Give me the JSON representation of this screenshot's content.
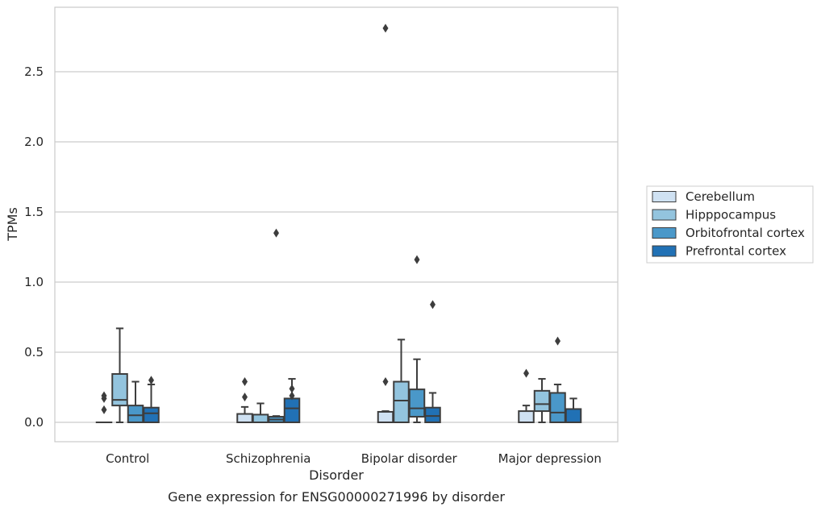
{
  "chart_data": {
    "type": "box",
    "title": "Gene expression for ENSG00000271996 by disorder",
    "xlabel": "Disorder",
    "ylabel": "TPMs",
    "ylim": [
      -0.14,
      2.97
    ],
    "yticks": [
      "0.0",
      "0.5",
      "1.0",
      "1.5",
      "2.0",
      "2.5"
    ],
    "grid": "horizontal",
    "legend_position": "right-center",
    "categories": [
      "Control",
      "Schizophrenia",
      "Bipolar disorder",
      "Major depression"
    ],
    "series": [
      {
        "name": "Cerebellum",
        "color": "#cfe1f2",
        "boxes": [
          {
            "whislo": 0.0,
            "q1": 0.0,
            "med": 0.0,
            "q3": 0.0,
            "whishi": 0.0,
            "fliers": [
              0.09,
              0.17,
              0.19
            ]
          },
          {
            "whislo": 0.0,
            "q1": 0.0,
            "med": 0.0,
            "q3": 0.06,
            "whishi": 0.11,
            "fliers": [
              0.18,
              0.29
            ]
          },
          {
            "whislo": 0.0,
            "q1": 0.0,
            "med": 0.0,
            "q3": 0.075,
            "whishi": 0.08,
            "fliers": [
              0.29,
              2.81
            ]
          },
          {
            "whislo": 0.0,
            "q1": 0.0,
            "med": 0.0,
            "q3": 0.08,
            "whishi": 0.12,
            "fliers": [
              0.35
            ]
          }
        ]
      },
      {
        "name": "Hipppocampus",
        "color": "#93c4de",
        "boxes": [
          {
            "whislo": 0.0,
            "q1": 0.12,
            "med": 0.16,
            "q3": 0.345,
            "whishi": 0.67,
            "fliers": []
          },
          {
            "whislo": 0.0,
            "q1": 0.0,
            "med": 0.0,
            "q3": 0.055,
            "whishi": 0.135,
            "fliers": []
          },
          {
            "whislo": 0.0,
            "q1": 0.0,
            "med": 0.155,
            "q3": 0.29,
            "whishi": 0.59,
            "fliers": []
          },
          {
            "whislo": 0.0,
            "q1": 0.08,
            "med": 0.13,
            "q3": 0.225,
            "whishi": 0.31,
            "fliers": []
          }
        ]
      },
      {
        "name": "Orbitofrontal cortex",
        "color": "#4a98c9",
        "boxes": [
          {
            "whislo": 0.0,
            "q1": 0.0,
            "med": 0.05,
            "q3": 0.12,
            "whishi": 0.29,
            "fliers": []
          },
          {
            "whislo": 0.0,
            "q1": 0.0,
            "med": 0.02,
            "q3": 0.04,
            "whishi": 0.045,
            "fliers": [
              1.35
            ]
          },
          {
            "whislo": 0.0,
            "q1": 0.04,
            "med": 0.1,
            "q3": 0.235,
            "whishi": 0.45,
            "fliers": [
              1.16
            ]
          },
          {
            "whislo": 0.0,
            "q1": 0.0,
            "med": 0.07,
            "q3": 0.21,
            "whishi": 0.27,
            "fliers": [
              0.58
            ]
          }
        ]
      },
      {
        "name": "Prefrontal cortex",
        "color": "#2171b5",
        "boxes": [
          {
            "whislo": 0.0,
            "q1": 0.0,
            "med": 0.065,
            "q3": 0.105,
            "whishi": 0.27,
            "fliers": [
              0.3
            ]
          },
          {
            "whislo": 0.0,
            "q1": 0.0,
            "med": 0.1,
            "q3": 0.17,
            "whishi": 0.31,
            "fliers": [
              0.19,
              0.24
            ]
          },
          {
            "whislo": 0.0,
            "q1": 0.0,
            "med": 0.045,
            "q3": 0.105,
            "whishi": 0.21,
            "fliers": [
              0.84
            ]
          },
          {
            "whislo": 0.0,
            "q1": 0.0,
            "med": 0.0,
            "q3": 0.095,
            "whishi": 0.17,
            "fliers": []
          }
        ]
      }
    ]
  }
}
